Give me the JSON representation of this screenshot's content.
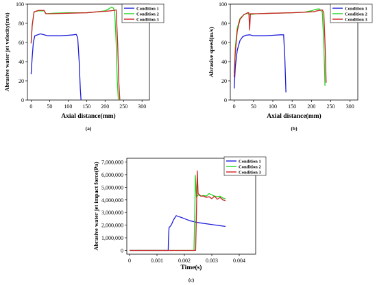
{
  "colors": {
    "c1": "#1a1adb",
    "c2": "#1ed41e",
    "c3": "#cc2020"
  },
  "chart_data": [
    {
      "type": "line",
      "panel": "(a)",
      "xlabel": "Axial distance(mm)",
      "ylabel": "Abrasive water jet velocity(m/s)",
      "xlim": [
        -10,
        320
      ],
      "ylim": [
        0,
        100
      ],
      "xticks": [
        0,
        50,
        100,
        150,
        200,
        250,
        300
      ],
      "yticks": [
        0,
        20,
        40,
        60,
        80,
        100
      ],
      "xtick_labels": [
        "0",
        "50",
        "100",
        "150",
        "200",
        "250",
        "300"
      ],
      "ytick_labels": [
        "0",
        "20",
        "40",
        "60",
        "80",
        "100"
      ],
      "legend": "top-right",
      "series": [
        {
          "name": "Condition 1",
          "color_key": "c1",
          "points": [
            [
              0,
              27
            ],
            [
              3,
              45
            ],
            [
              6,
              60
            ],
            [
              10,
              67
            ],
            [
              18,
              68
            ],
            [
              25,
              69
            ],
            [
              35,
              68
            ],
            [
              45,
              67
            ],
            [
              60,
              67
            ],
            [
              80,
              67
            ],
            [
              100,
              67.5
            ],
            [
              115,
              68
            ],
            [
              122,
              68.5
            ],
            [
              126,
              65
            ],
            [
              130,
              40
            ],
            [
              133,
              12
            ],
            [
              135,
              0
            ]
          ]
        },
        {
          "name": "Condition 2",
          "color_key": "c2",
          "points": [
            [
              0,
              60
            ],
            [
              3,
              78
            ],
            [
              8,
              92
            ],
            [
              20,
              93
            ],
            [
              35,
              93
            ],
            [
              40,
              90
            ],
            [
              60,
              90.5
            ],
            [
              100,
              91
            ],
            [
              150,
              91
            ],
            [
              180,
              92
            ],
            [
              200,
              93
            ],
            [
              210,
              95
            ],
            [
              218,
              97
            ],
            [
              222,
              96
            ],
            [
              226,
              93
            ],
            [
              230,
              60
            ],
            [
              233,
              20
            ],
            [
              236,
              0
            ]
          ]
        },
        {
          "name": "Condition 3",
          "color_key": "c3",
          "points": [
            [
              0,
              59
            ],
            [
              3,
              78
            ],
            [
              8,
              92
            ],
            [
              20,
              93.5
            ],
            [
              35,
              93.5
            ],
            [
              40,
              90
            ],
            [
              60,
              90
            ],
            [
              100,
              90.5
            ],
            [
              150,
              91
            ],
            [
              180,
              92
            ],
            [
              200,
              92.5
            ],
            [
              215,
              93
            ],
            [
              225,
              93.5
            ],
            [
              230,
              94
            ],
            [
              234,
              60
            ],
            [
              237,
              20
            ],
            [
              240,
              0
            ]
          ]
        }
      ]
    },
    {
      "type": "line",
      "panel": "(b)",
      "xlabel": "Axial distance(mm)",
      "ylabel": "Abrasive speed(m/s)",
      "xlim": [
        -10,
        320
      ],
      "ylim": [
        0,
        100
      ],
      "xticks": [
        0,
        50,
        100,
        150,
        200,
        250,
        300
      ],
      "yticks": [
        0,
        20,
        40,
        60,
        80,
        100
      ],
      "xtick_labels": [
        "0",
        "50",
        "100",
        "150",
        "200",
        "250",
        "300"
      ],
      "ytick_labels": [
        "0",
        "20",
        "40",
        "60",
        "80",
        "100"
      ],
      "legend": "top-right",
      "series": [
        {
          "name": "Condition 1",
          "color_key": "c1",
          "points": [
            [
              0,
              12
            ],
            [
              3,
              35
            ],
            [
              8,
              52
            ],
            [
              15,
              62
            ],
            [
              22,
              66
            ],
            [
              30,
              67.5
            ],
            [
              40,
              68
            ],
            [
              50,
              67
            ],
            [
              60,
              67
            ],
            [
              80,
              67
            ],
            [
              100,
              67.5
            ],
            [
              120,
              68
            ],
            [
              128,
              68
            ],
            [
              131,
              45
            ],
            [
              133,
              20
            ],
            [
              134,
              8
            ]
          ]
        },
        {
          "name": "Condition 2",
          "color_key": "c2",
          "points": [
            [
              0,
              28
            ],
            [
              3,
              55
            ],
            [
              8,
              75
            ],
            [
              15,
              85
            ],
            [
              25,
              89
            ],
            [
              35,
              90.5
            ],
            [
              40,
              89
            ],
            [
              60,
              90
            ],
            [
              100,
              90.5
            ],
            [
              150,
              91
            ],
            [
              180,
              91.5
            ],
            [
              200,
              93
            ],
            [
              210,
              94.5
            ],
            [
              220,
              95
            ],
            [
              228,
              92
            ],
            [
              232,
              60
            ],
            [
              234,
              30
            ],
            [
              235,
              15
            ]
          ]
        },
        {
          "name": "Condition 3",
          "color_key": "c3",
          "points": [
            [
              0,
              24
            ],
            [
              3,
              50
            ],
            [
              8,
              72
            ],
            [
              15,
              84
            ],
            [
              25,
              89
            ],
            [
              35,
              91
            ],
            [
              38,
              91
            ],
            [
              40,
              73
            ],
            [
              42,
              90
            ],
            [
              60,
              90
            ],
            [
              100,
              90.5
            ],
            [
              150,
              91
            ],
            [
              180,
              91.5
            ],
            [
              205,
              92
            ],
            [
              215,
              93
            ],
            [
              228,
              94
            ],
            [
              232,
              91
            ],
            [
              236,
              50
            ],
            [
              238,
              18
            ]
          ]
        }
      ]
    },
    {
      "type": "line",
      "panel": "(c)",
      "xlabel": "Time(s)",
      "ylabel": "Abrasive water jet impact force(Pa)",
      "xlim": [
        -0.0001,
        0.0046
      ],
      "ylim": [
        -300000,
        7300000
      ],
      "xticks": [
        0,
        0.001,
        0.002,
        0.003,
        0.004
      ],
      "yticks": [
        0,
        1000000,
        2000000,
        3000000,
        4000000,
        5000000,
        6000000,
        7000000
      ],
      "xtick_labels": [
        "0",
        "0.001",
        "0.002",
        "0.003",
        "0.004"
      ],
      "ytick_labels": [
        "0",
        "1,000,000",
        "2,000,000",
        "3,000,000",
        "4,000,000",
        "5,000,000",
        "6,000,000",
        "7,000,000"
      ],
      "legend": "top-right",
      "series": [
        {
          "name": "Condition 1",
          "color_key": "c1",
          "points": [
            [
              0,
              0
            ],
            [
              0.00141,
              0
            ],
            [
              0.00142,
              900000
            ],
            [
              0.00144,
              1800000
            ],
            [
              0.00148,
              1900000
            ],
            [
              0.00152,
              2000000
            ],
            [
              0.0016,
              2400000
            ],
            [
              0.0017,
              2750000
            ],
            [
              0.0019,
              2600000
            ],
            [
              0.0022,
              2350000
            ],
            [
              0.0025,
              2200000
            ],
            [
              0.003,
              2050000
            ],
            [
              0.0035,
              1900000
            ]
          ]
        },
        {
          "name": "Condition 2",
          "color_key": "c2",
          "points": [
            [
              0,
              0
            ],
            [
              0.00235,
              0
            ],
            [
              0.00238,
              3000000
            ],
            [
              0.0024,
              5950000
            ],
            [
              0.00244,
              4200000
            ],
            [
              0.0025,
              4400000
            ],
            [
              0.0026,
              4300000
            ],
            [
              0.0027,
              4350000
            ],
            [
              0.0028,
              4300000
            ],
            [
              0.0029,
              4500000
            ],
            [
              0.003,
              4400000
            ],
            [
              0.0031,
              4300000
            ],
            [
              0.0032,
              4250000
            ],
            [
              0.0033,
              4300000
            ],
            [
              0.0034,
              4150000
            ],
            [
              0.0035,
              4100000
            ]
          ]
        },
        {
          "name": "Condition 3",
          "color_key": "c3",
          "points": [
            [
              0,
              0
            ],
            [
              0.00241,
              0
            ],
            [
              0.00244,
              3000000
            ],
            [
              0.00247,
              6300000
            ],
            [
              0.0025,
              4500000
            ],
            [
              0.0026,
              4300000
            ],
            [
              0.0027,
              4300000
            ],
            [
              0.0028,
              4200000
            ],
            [
              0.0029,
              4250000
            ],
            [
              0.003,
              4100000
            ],
            [
              0.0031,
              4300000
            ],
            [
              0.0032,
              4050000
            ],
            [
              0.0033,
              4200000
            ],
            [
              0.0034,
              4000000
            ],
            [
              0.0035,
              3950000
            ]
          ]
        }
      ]
    }
  ]
}
